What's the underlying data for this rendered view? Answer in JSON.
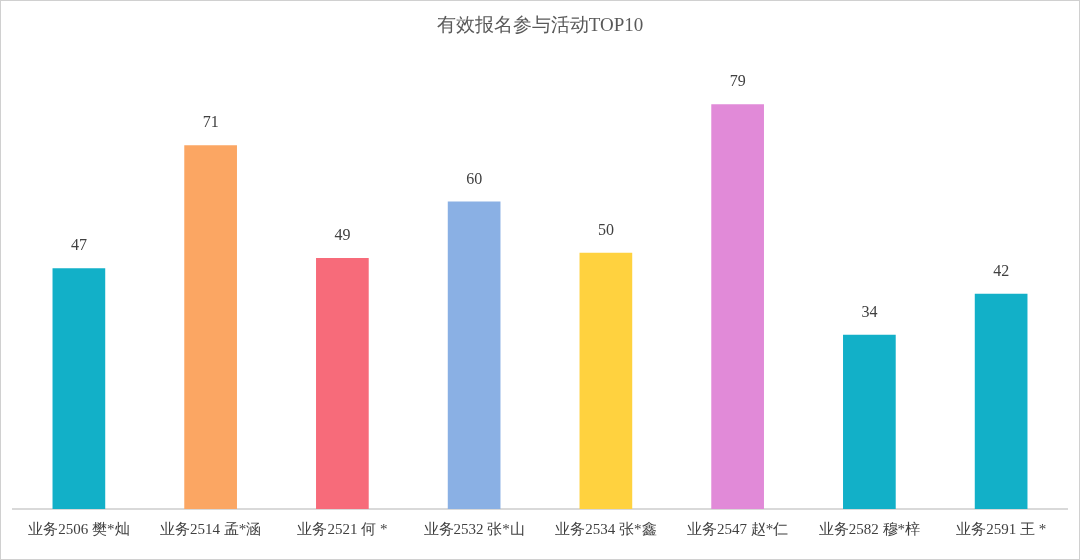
{
  "chart_data": {
    "type": "bar",
    "title": "有效报名参与活动TOP10",
    "categories": [
      "业务2506 樊*灿",
      "业务2514 孟*涵",
      "业务2521 何 *",
      "业务2532 张*山",
      "业务2534 张*鑫",
      "业务2547 赵*仁",
      "业务2582 穆*梓",
      "业务2591 王 *"
    ],
    "values": [
      47,
      71,
      49,
      60,
      50,
      79,
      34,
      42
    ],
    "colors": [
      "#12b0c8",
      "#fba663",
      "#f76b7a",
      "#8ab0e4",
      "#ffd23f",
      "#e18ad8",
      "#12b0c8",
      "#12b0c8"
    ],
    "data_labels": true
  }
}
